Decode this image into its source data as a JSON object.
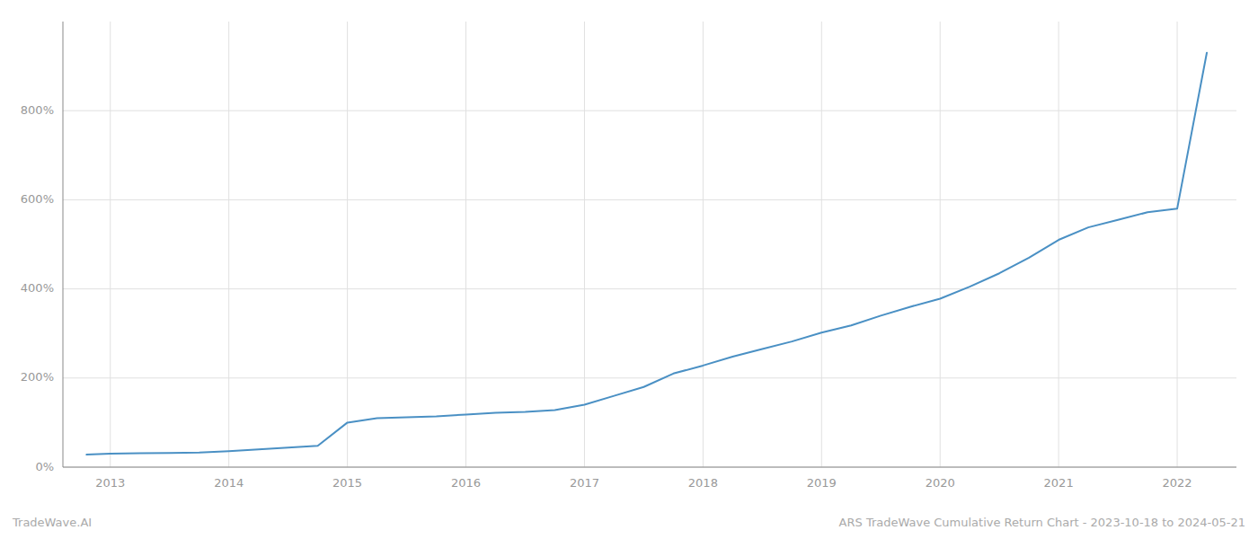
{
  "chart_data": {
    "type": "line",
    "title": "ARS TradeWave Cumulative Return Chart - 2023-10-18 to 2024-05-21",
    "annotations": [
      "TradeWave.AI"
    ],
    "x": [
      2012.8,
      2013.0,
      2013.25,
      2013.5,
      2013.75,
      2014.0,
      2014.25,
      2014.5,
      2014.75,
      2015.0,
      2015.25,
      2015.5,
      2015.75,
      2016.0,
      2016.25,
      2016.5,
      2016.75,
      2017.0,
      2017.25,
      2017.5,
      2017.75,
      2018.0,
      2018.25,
      2018.5,
      2018.75,
      2019.0,
      2019.25,
      2019.5,
      2019.75,
      2020.0,
      2020.25,
      2020.5,
      2020.75,
      2021.0,
      2021.25,
      2021.5,
      2021.75,
      2022.0,
      2022.25
    ],
    "values": [
      28,
      30,
      31,
      32,
      33,
      36,
      40,
      44,
      48,
      100,
      110,
      112,
      114,
      118,
      122,
      124,
      128,
      140,
      160,
      180,
      210,
      228,
      248,
      265,
      282,
      302,
      318,
      340,
      360,
      378,
      405,
      435,
      470,
      510,
      538,
      555,
      572,
      580,
      930
    ],
    "color": "#4a90c4",
    "xlim": [
      2012.6,
      2022.5
    ],
    "xticks": [
      2013,
      2014,
      2015,
      2016,
      2017,
      2018,
      2019,
      2020,
      2021,
      2022
    ],
    "ylim": [
      0,
      1000
    ],
    "yticks": [
      {
        "value": 0,
        "label": "0%"
      },
      {
        "value": 200,
        "label": "200%"
      },
      {
        "value": 400,
        "label": "400%"
      },
      {
        "value": 600,
        "label": "600%"
      },
      {
        "value": 800,
        "label": "800%"
      }
    ],
    "grid": true
  }
}
